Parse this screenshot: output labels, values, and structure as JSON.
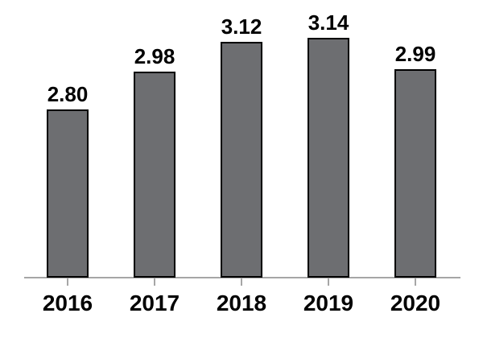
{
  "chart_data": {
    "type": "bar",
    "title": "",
    "categories": [
      "2016",
      "2017",
      "2018",
      "2019",
      "2020"
    ],
    "values": [
      2.8,
      2.98,
      3.12,
      3.14,
      2.99
    ],
    "value_labels": [
      "2.80",
      "2.98",
      "3.12",
      "3.14",
      "2.99"
    ],
    "xlabel": "",
    "ylabel": "",
    "ylim": [
      2.0,
      3.2
    ],
    "grid": false,
    "legend": false,
    "colors": {
      "bar_fill": "#6d6e71",
      "bar_border": "#000000",
      "axis_line": "#a6a6a6",
      "tick": "#a6a6a6",
      "label_text": "#000000",
      "background": "#ffffff"
    }
  }
}
